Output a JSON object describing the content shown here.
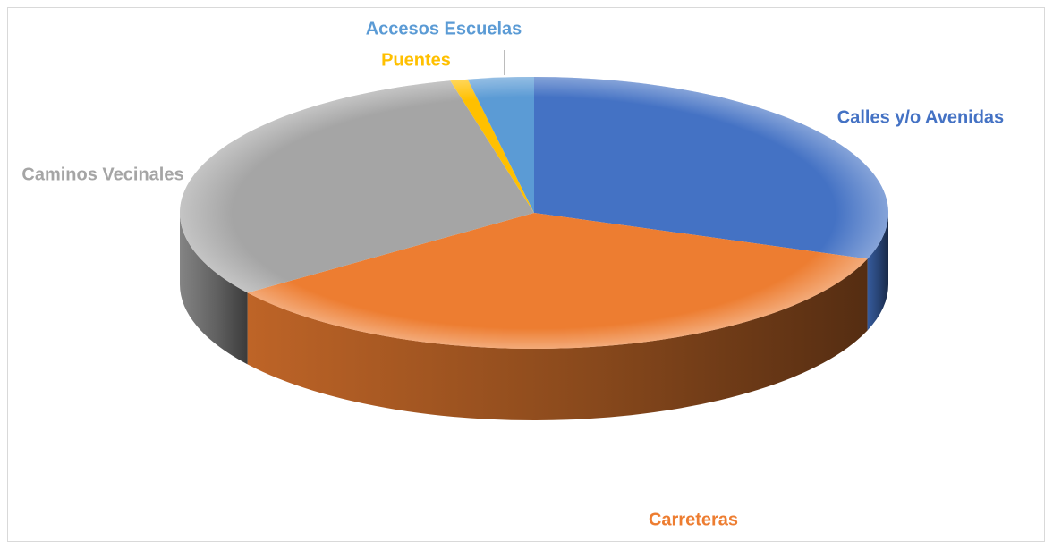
{
  "chart_data": {
    "type": "pie",
    "style": "3d",
    "title": "",
    "legend": "none",
    "data_labels": "category-names",
    "slices": [
      {
        "label": "Calles y/o Avenidas",
        "value": 30.5,
        "color": "#4472C4",
        "label_color": "#4472C4"
      },
      {
        "label": "Carreteras",
        "value": 34.5,
        "color": "#ED7D31",
        "label_color": "#ED7D31"
      },
      {
        "label": "Caminos Vecinales",
        "value": 31.2,
        "color": "#A5A5A5",
        "label_color": "#A5A5A5"
      },
      {
        "label": "Puentes",
        "value": 0.8,
        "color": "#FFC000",
        "label_color": "#FFC000"
      },
      {
        "label": "Accesos Escuelas",
        "value": 3.0,
        "color": "#5B9BD5",
        "label_color": "#5B9BD5"
      }
    ]
  }
}
